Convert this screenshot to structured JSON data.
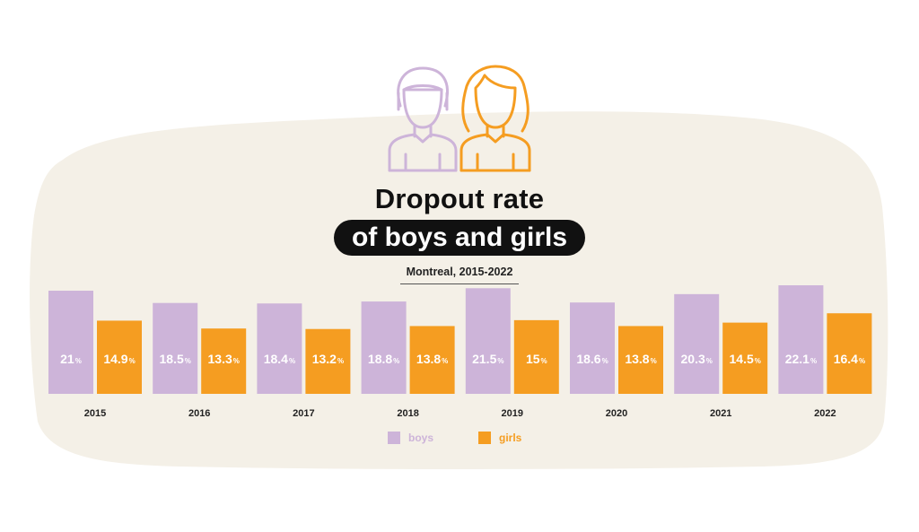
{
  "header": {
    "title_line1": "Dropout rate",
    "title_line2": "of boys and girls",
    "subtitle": "Montreal, 2015-2022"
  },
  "icons": {
    "boy": "boy-avatar-icon",
    "girl": "girl-avatar-icon"
  },
  "colors": {
    "boys": "#cdb4d9",
    "girls": "#f59d21",
    "background_blob": "#f4f0e7"
  },
  "legend": {
    "placement": "bottom-center",
    "boys_label": "boys",
    "girls_label": "girls"
  },
  "chart_data": {
    "type": "bar",
    "title": "Dropout rate of boys and girls",
    "subtitle": "Montreal, 2015-2022",
    "categories": [
      "2015",
      "2016",
      "2017",
      "2018",
      "2019",
      "2020",
      "2021",
      "2022"
    ],
    "series": [
      {
        "name": "boys",
        "values": [
          21,
          18.5,
          18.4,
          18.8,
          21.5,
          18.6,
          20.3,
          22.1
        ],
        "labels": [
          "21",
          "18.5",
          "18.4",
          "18.8",
          "21.5",
          "18.6",
          "20.3",
          "22.1"
        ]
      },
      {
        "name": "girls",
        "values": [
          14.9,
          13.3,
          13.2,
          13.8,
          15,
          13.8,
          14.5,
          16.4
        ],
        "labels": [
          "14.9",
          "13.3",
          "13.2",
          "13.8",
          "15",
          "13.8",
          "14.5",
          "16.4"
        ]
      }
    ],
    "unit": "%",
    "ylim": [
      0,
      22.1
    ],
    "grid": false,
    "xlabel": "",
    "ylabel": ""
  }
}
